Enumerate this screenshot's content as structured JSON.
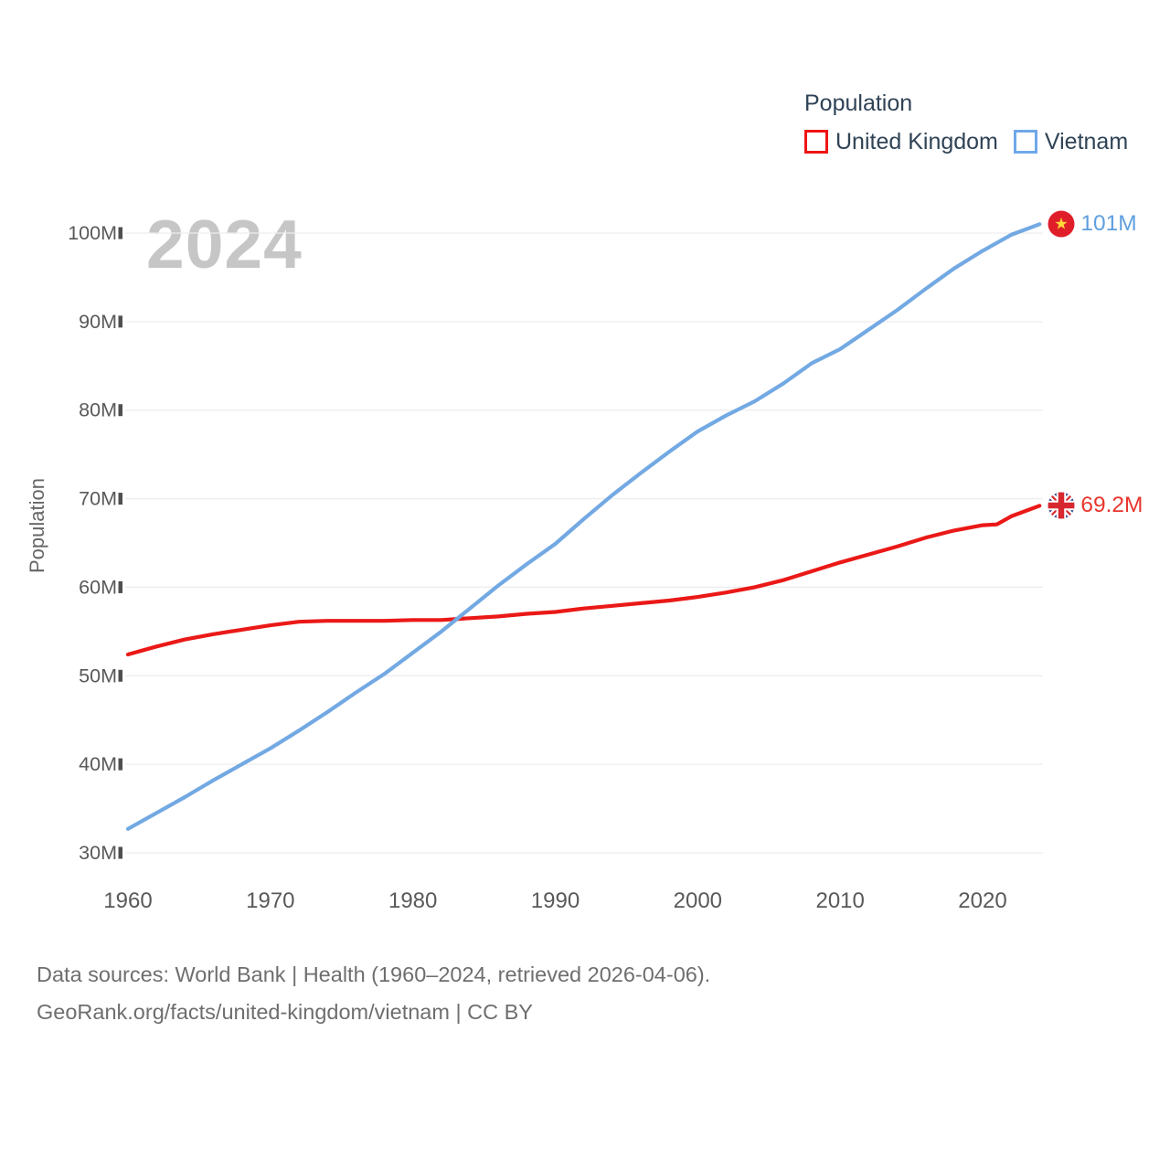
{
  "legend": {
    "title": "Population",
    "items": [
      {
        "label": "United Kingdom",
        "color": "#f01414"
      },
      {
        "label": "Vietnam",
        "color": "#6fa8ea"
      }
    ]
  },
  "watermark": "2024",
  "axes": {
    "y_title": "Population",
    "y_ticks": [
      "30M",
      "40M",
      "50M",
      "60M",
      "70M",
      "80M",
      "90M",
      "100M"
    ],
    "x_ticks": [
      "1960",
      "1970",
      "1980",
      "1990",
      "2000",
      "2010",
      "2020"
    ]
  },
  "footer": {
    "line1": "Data sources: World Bank | Health (1960–2024, retrieved 2026-04-06).",
    "line2": "GeoRank.org/facts/united-kingdom/vietnam | CC BY"
  },
  "chart_data": {
    "type": "line",
    "title": "Population",
    "xlabel": "",
    "ylabel": "Population",
    "x_range": [
      1960,
      2024
    ],
    "y_range_millions": [
      30,
      101
    ],
    "grid": "horizontal",
    "legend_position": "top-right",
    "series": [
      {
        "name": "United Kingdom",
        "color": "#ea1917",
        "end_label": "69.2M",
        "end_label_color": "#e8362c",
        "flag": "uk-flag-icon",
        "points": [
          [
            1960,
            52.4
          ],
          [
            1962,
            53.3
          ],
          [
            1964,
            54.1
          ],
          [
            1966,
            54.7
          ],
          [
            1968,
            55.2
          ],
          [
            1970,
            55.7
          ],
          [
            1972,
            56.1
          ],
          [
            1974,
            56.2
          ],
          [
            1976,
            56.2
          ],
          [
            1978,
            56.2
          ],
          [
            1980,
            56.3
          ],
          [
            1982,
            56.3
          ],
          [
            1984,
            56.5
          ],
          [
            1986,
            56.7
          ],
          [
            1988,
            57.0
          ],
          [
            1990,
            57.2
          ],
          [
            1992,
            57.6
          ],
          [
            1994,
            57.9
          ],
          [
            1996,
            58.2
          ],
          [
            1998,
            58.5
          ],
          [
            2000,
            58.9
          ],
          [
            2002,
            59.4
          ],
          [
            2004,
            60.0
          ],
          [
            2006,
            60.8
          ],
          [
            2008,
            61.8
          ],
          [
            2010,
            62.8
          ],
          [
            2012,
            63.7
          ],
          [
            2014,
            64.6
          ],
          [
            2016,
            65.6
          ],
          [
            2018,
            66.4
          ],
          [
            2020,
            67.0
          ],
          [
            2021,
            67.1
          ],
          [
            2022,
            68.0
          ],
          [
            2024,
            69.2
          ]
        ]
      },
      {
        "name": "Vietnam",
        "color": "#73a9e3",
        "end_label": "101M",
        "end_label_color": "#5f9fdf",
        "flag": "vietnam-flag-icon",
        "points": [
          [
            1960,
            32.7
          ],
          [
            1962,
            34.5
          ],
          [
            1964,
            36.3
          ],
          [
            1966,
            38.2
          ],
          [
            1968,
            40.0
          ],
          [
            1970,
            41.8
          ],
          [
            1972,
            43.8
          ],
          [
            1974,
            45.9
          ],
          [
            1976,
            48.1
          ],
          [
            1978,
            50.2
          ],
          [
            1980,
            52.6
          ],
          [
            1982,
            55.0
          ],
          [
            1984,
            57.6
          ],
          [
            1986,
            60.2
          ],
          [
            1988,
            62.6
          ],
          [
            1990,
            64.9
          ],
          [
            1992,
            67.7
          ],
          [
            1994,
            70.4
          ],
          [
            1996,
            72.9
          ],
          [
            1998,
            75.3
          ],
          [
            2000,
            77.6
          ],
          [
            2002,
            79.4
          ],
          [
            2004,
            81.0
          ],
          [
            2006,
            83.0
          ],
          [
            2008,
            85.3
          ],
          [
            2010,
            86.9
          ],
          [
            2012,
            89.1
          ],
          [
            2014,
            91.3
          ],
          [
            2016,
            93.7
          ],
          [
            2018,
            96.0
          ],
          [
            2020,
            98.0
          ],
          [
            2022,
            99.8
          ],
          [
            2024,
            101.0
          ]
        ]
      }
    ]
  }
}
